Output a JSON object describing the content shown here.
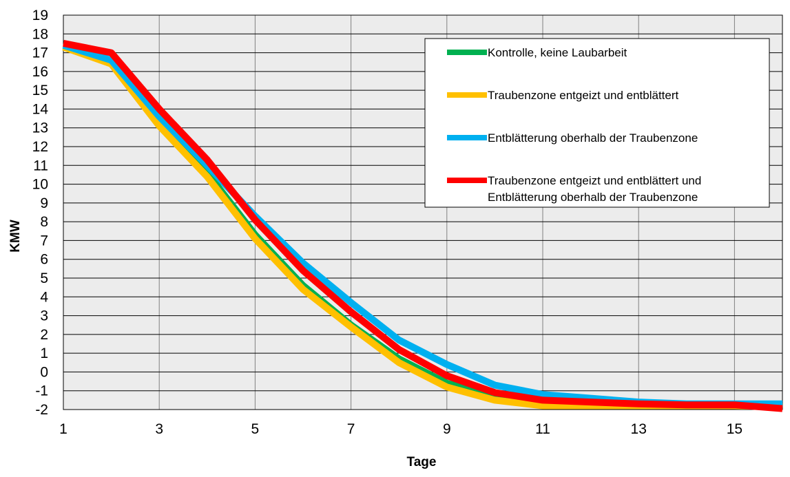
{
  "chart_data": {
    "type": "line",
    "title": "",
    "xlabel": "Tage",
    "ylabel": "KMW",
    "xlim": [
      1,
      16
    ],
    "ylim": [
      -2,
      19
    ],
    "x_ticks": [
      1,
      3,
      5,
      7,
      9,
      11,
      13,
      15
    ],
    "y_ticks": [
      -2,
      -1,
      0,
      1,
      2,
      3,
      4,
      5,
      6,
      7,
      8,
      9,
      10,
      11,
      12,
      13,
      14,
      15,
      16,
      17,
      18,
      19
    ],
    "grid": true,
    "legend_position": "top-right",
    "x": [
      1,
      2,
      3,
      4,
      5,
      6,
      7,
      8,
      9,
      10,
      11,
      12,
      13,
      14,
      15,
      16
    ],
    "series": [
      {
        "name": "Kontrolle, keine Laubarbeit",
        "color": "#00b050",
        "values": [
          17.3,
          16.5,
          13.3,
          10.6,
          7.3,
          4.6,
          2.5,
          0.7,
          -0.6,
          -1.3,
          -1.6,
          -1.7,
          -1.8,
          -1.8,
          -1.8,
          -1.85
        ]
      },
      {
        "name": "Traubenzone entgeizt und entblättert",
        "color": "#ffc000",
        "values": [
          17.3,
          16.4,
          13.1,
          10.4,
          7.1,
          4.4,
          2.4,
          0.5,
          -0.8,
          -1.5,
          -1.8,
          -1.8,
          -1.8,
          -1.8,
          -1.8,
          -1.85
        ]
      },
      {
        "name": "Entblätterung oberhalb der Traubenzone",
        "color": "#00b0f0",
        "values": [
          17.4,
          16.6,
          13.6,
          11.0,
          8.3,
          5.8,
          3.7,
          1.7,
          0.4,
          -0.7,
          -1.2,
          -1.4,
          -1.6,
          -1.7,
          -1.7,
          -1.7
        ]
      },
      {
        "name": "Traubenzone entgeizt und entblättert und Entblätterung oberhalb der Traubenzone",
        "name_lines": [
          "Traubenzone entgeizt und entblättert und",
          "Entblätterung oberhalb der Traubenzone"
        ],
        "color": "#ff0000",
        "values": [
          17.5,
          17.0,
          14.0,
          11.3,
          8.1,
          5.4,
          3.2,
          1.2,
          -0.2,
          -1.1,
          -1.5,
          -1.6,
          -1.7,
          -1.75,
          -1.75,
          -1.95
        ]
      }
    ]
  }
}
